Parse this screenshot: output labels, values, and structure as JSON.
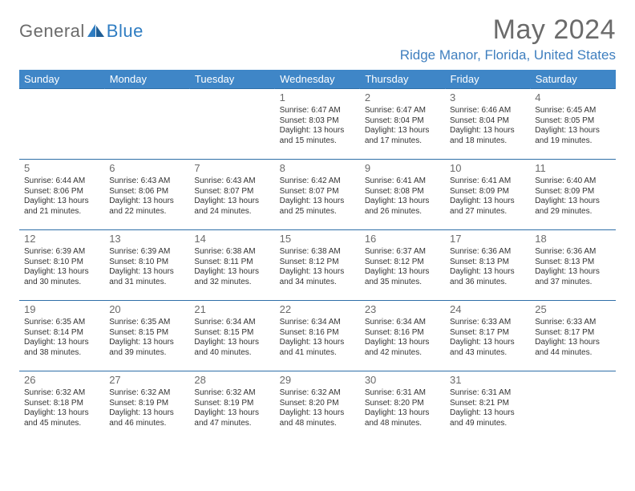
{
  "brand": {
    "part1": "General",
    "part2": "Blue"
  },
  "title": {
    "month": "May 2024",
    "location": "Ridge Manor, Florida, United States"
  },
  "colors": {
    "header_bg": "#3f86c7",
    "header_text": "#ffffff",
    "border": "#2f6fa8",
    "brand_blue": "#2f7dc2",
    "brand_gray": "#6b6b6b",
    "loc_text": "#3f7fbf",
    "body_text": "#333333",
    "daynum": "#6b6b6b",
    "page_bg": "#ffffff"
  },
  "typography": {
    "base_family": "Arial",
    "title_fontsize": 34,
    "loc_fontsize": 17,
    "dayhdr_fontsize": 13,
    "daynum_fontsize": 13,
    "cell_fontsize": 10
  },
  "calendar": {
    "type": "table",
    "day_headers": [
      "Sunday",
      "Monday",
      "Tuesday",
      "Wednesday",
      "Thursday",
      "Friday",
      "Saturday"
    ],
    "weeks": [
      [
        null,
        null,
        null,
        {
          "d": "1",
          "sr": "6:47 AM",
          "ss": "8:03 PM",
          "dl": "13 hours and 15 minutes."
        },
        {
          "d": "2",
          "sr": "6:47 AM",
          "ss": "8:04 PM",
          "dl": "13 hours and 17 minutes."
        },
        {
          "d": "3",
          "sr": "6:46 AM",
          "ss": "8:04 PM",
          "dl": "13 hours and 18 minutes."
        },
        {
          "d": "4",
          "sr": "6:45 AM",
          "ss": "8:05 PM",
          "dl": "13 hours and 19 minutes."
        }
      ],
      [
        {
          "d": "5",
          "sr": "6:44 AM",
          "ss": "8:06 PM",
          "dl": "13 hours and 21 minutes."
        },
        {
          "d": "6",
          "sr": "6:43 AM",
          "ss": "8:06 PM",
          "dl": "13 hours and 22 minutes."
        },
        {
          "d": "7",
          "sr": "6:43 AM",
          "ss": "8:07 PM",
          "dl": "13 hours and 24 minutes."
        },
        {
          "d": "8",
          "sr": "6:42 AM",
          "ss": "8:07 PM",
          "dl": "13 hours and 25 minutes."
        },
        {
          "d": "9",
          "sr": "6:41 AM",
          "ss": "8:08 PM",
          "dl": "13 hours and 26 minutes."
        },
        {
          "d": "10",
          "sr": "6:41 AM",
          "ss": "8:09 PM",
          "dl": "13 hours and 27 minutes."
        },
        {
          "d": "11",
          "sr": "6:40 AM",
          "ss": "8:09 PM",
          "dl": "13 hours and 29 minutes."
        }
      ],
      [
        {
          "d": "12",
          "sr": "6:39 AM",
          "ss": "8:10 PM",
          "dl": "13 hours and 30 minutes."
        },
        {
          "d": "13",
          "sr": "6:39 AM",
          "ss": "8:10 PM",
          "dl": "13 hours and 31 minutes."
        },
        {
          "d": "14",
          "sr": "6:38 AM",
          "ss": "8:11 PM",
          "dl": "13 hours and 32 minutes."
        },
        {
          "d": "15",
          "sr": "6:38 AM",
          "ss": "8:12 PM",
          "dl": "13 hours and 34 minutes."
        },
        {
          "d": "16",
          "sr": "6:37 AM",
          "ss": "8:12 PM",
          "dl": "13 hours and 35 minutes."
        },
        {
          "d": "17",
          "sr": "6:36 AM",
          "ss": "8:13 PM",
          "dl": "13 hours and 36 minutes."
        },
        {
          "d": "18",
          "sr": "6:36 AM",
          "ss": "8:13 PM",
          "dl": "13 hours and 37 minutes."
        }
      ],
      [
        {
          "d": "19",
          "sr": "6:35 AM",
          "ss": "8:14 PM",
          "dl": "13 hours and 38 minutes."
        },
        {
          "d": "20",
          "sr": "6:35 AM",
          "ss": "8:15 PM",
          "dl": "13 hours and 39 minutes."
        },
        {
          "d": "21",
          "sr": "6:34 AM",
          "ss": "8:15 PM",
          "dl": "13 hours and 40 minutes."
        },
        {
          "d": "22",
          "sr": "6:34 AM",
          "ss": "8:16 PM",
          "dl": "13 hours and 41 minutes."
        },
        {
          "d": "23",
          "sr": "6:34 AM",
          "ss": "8:16 PM",
          "dl": "13 hours and 42 minutes."
        },
        {
          "d": "24",
          "sr": "6:33 AM",
          "ss": "8:17 PM",
          "dl": "13 hours and 43 minutes."
        },
        {
          "d": "25",
          "sr": "6:33 AM",
          "ss": "8:17 PM",
          "dl": "13 hours and 44 minutes."
        }
      ],
      [
        {
          "d": "26",
          "sr": "6:32 AM",
          "ss": "8:18 PM",
          "dl": "13 hours and 45 minutes."
        },
        {
          "d": "27",
          "sr": "6:32 AM",
          "ss": "8:19 PM",
          "dl": "13 hours and 46 minutes."
        },
        {
          "d": "28",
          "sr": "6:32 AM",
          "ss": "8:19 PM",
          "dl": "13 hours and 47 minutes."
        },
        {
          "d": "29",
          "sr": "6:32 AM",
          "ss": "8:20 PM",
          "dl": "13 hours and 48 minutes."
        },
        {
          "d": "30",
          "sr": "6:31 AM",
          "ss": "8:20 PM",
          "dl": "13 hours and 48 minutes."
        },
        {
          "d": "31",
          "sr": "6:31 AM",
          "ss": "8:21 PM",
          "dl": "13 hours and 49 minutes."
        },
        null
      ]
    ],
    "labels": {
      "sunrise": "Sunrise:",
      "sunset": "Sunset:",
      "daylight": "Daylight:"
    }
  }
}
